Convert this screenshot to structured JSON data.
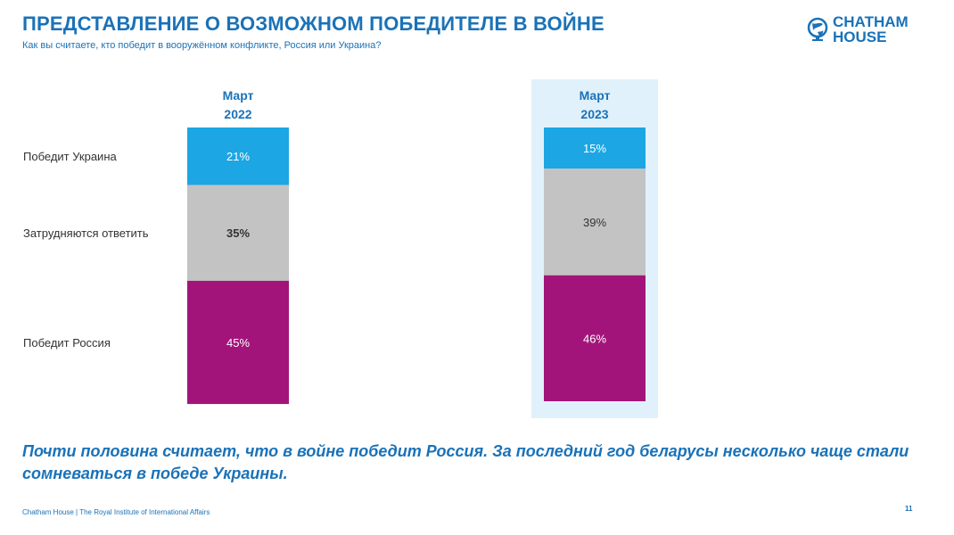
{
  "header": {
    "title": "ПРЕДСТАВЛЕНИЕ О ВОЗМОЖНОМ ПОБЕДИТЕЛЕ В ВОЙНЕ",
    "subtitle": "Как вы считаете, кто победит в вооружённом конфликте, Россия или Украина?"
  },
  "logo": {
    "line1": "CHATHAM",
    "line2": "HOUSE"
  },
  "chart_data": {
    "type": "bar",
    "stacked": true,
    "normalized": true,
    "title": "ПРЕДСТАВЛЕНИЕ О ВОЗМОЖНОМ ПОБЕДИТЕЛЕ В ВОЙНЕ",
    "categories": [
      {
        "line1": "Март",
        "line2": "2022"
      },
      {
        "line1": "Март",
        "line2": "2023"
      }
    ],
    "highlighted_category": 1,
    "series": [
      {
        "name": "Победит Украина",
        "values": [
          21,
          15
        ],
        "labels": [
          "21%",
          "15%"
        ],
        "color": "#1ca6e4",
        "label_color": "#ffffff"
      },
      {
        "name": "Затрудняются ответить",
        "values": [
          35,
          39
        ],
        "labels": [
          "35%",
          "39%"
        ],
        "color": "#c3c3c3",
        "label_color": "#333333"
      },
      {
        "name": "Победит Россия",
        "values": [
          45,
          46
        ],
        "labels": [
          "45%",
          "46%"
        ],
        "color": "#a3147a",
        "label_color": "#ffffff"
      }
    ],
    "highlight_color": "#e0f1fb",
    "category_label_color": "#1a72b8",
    "unit": "%"
  },
  "conclusion": "Почти половина считает, что в войне победит Россия. За последний год беларусы несколько чаще стали сомневаться в победе Украины.",
  "footer": {
    "text": "Chatham House  |  The Royal Institute of International Affairs",
    "page_number": "11"
  }
}
